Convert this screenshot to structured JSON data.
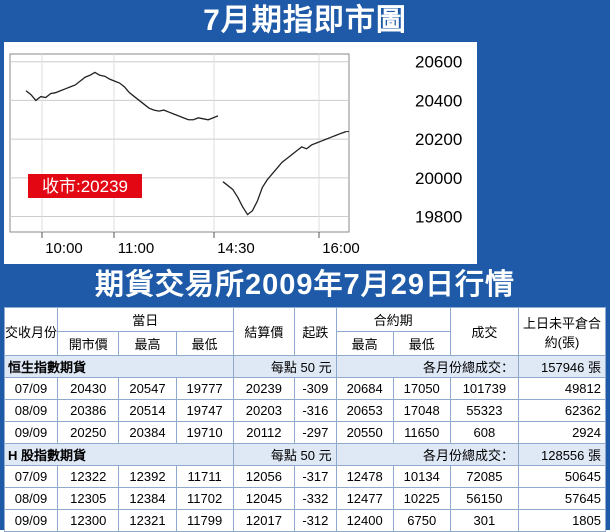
{
  "title": "7月期指即市圖",
  "chart_data": {
    "type": "line",
    "ylim": [
      19720,
      20640
    ],
    "y_ticks": [
      20600,
      20400,
      20200,
      20000,
      19800
    ],
    "x_ticks": [
      "10:00",
      "11:00",
      "14:30",
      "16:00"
    ],
    "close_label": "收市:20239",
    "series": [
      {
        "values": [
          20450,
          20430,
          20400,
          20420,
          20415,
          20435,
          20440,
          20450,
          20460,
          20470,
          20480,
          20500,
          20520,
          20530,
          20545,
          20530,
          20525,
          20510,
          20500,
          20490,
          20470,
          20440,
          20420,
          20400,
          20380,
          20360,
          20350,
          20345,
          20350,
          20340,
          20330,
          20320,
          20310,
          20300,
          20300,
          20310,
          20305,
          20300,
          20310,
          20320,
          19980,
          19960,
          19940,
          19900,
          19850,
          19810,
          19830,
          19880,
          19950,
          19990,
          20020,
          20050,
          20080,
          20100,
          20120,
          20140,
          20160,
          20150,
          20170,
          20180,
          20190,
          20200,
          20210,
          20220,
          20230,
          20239
        ]
      }
    ]
  },
  "table": {
    "title": "期貨交易所2009年7月29日行情",
    "headers": {
      "month": "交收月份",
      "day": "當日",
      "open": "開市價",
      "high": "最高",
      "low": "最低",
      "settle": "結算價",
      "change": "起跌",
      "life": "合約期",
      "life_high": "最高",
      "life_low": "最低",
      "volume": "成交",
      "oi": "上日未平倉合約(張)"
    },
    "sections": [
      {
        "name": "恒生指數期貨",
        "point": "每點 50 元",
        "total_label": "各月份總成交：",
        "total": "157946 張",
        "rows": [
          [
            "07/09",
            "20430",
            "20547",
            "19777",
            "20239",
            "-309",
            "20684",
            "17050",
            "101739",
            "49812"
          ],
          [
            "08/09",
            "20386",
            "20514",
            "19747",
            "20203",
            "-316",
            "20653",
            "17048",
            "55323",
            "62362"
          ],
          [
            "09/09",
            "20250",
            "20384",
            "19710",
            "20112",
            "-297",
            "20550",
            "11650",
            "608",
            "2924"
          ]
        ]
      },
      {
        "name": "H 股指數期貨",
        "point": "每點 50 元",
        "total_label": "各月份總成交：",
        "total": "128556 張",
        "rows": [
          [
            "07/09",
            "12322",
            "12392",
            "11711",
            "12056",
            "-317",
            "12478",
            "10134",
            "72085",
            "50645"
          ],
          [
            "08/09",
            "12305",
            "12384",
            "11702",
            "12045",
            "-332",
            "12477",
            "10225",
            "56150",
            "57645"
          ],
          [
            "09/09",
            "12300",
            "12321",
            "11799",
            "12017",
            "-312",
            "12400",
            "6750",
            "301",
            "1805"
          ]
        ]
      }
    ]
  }
}
